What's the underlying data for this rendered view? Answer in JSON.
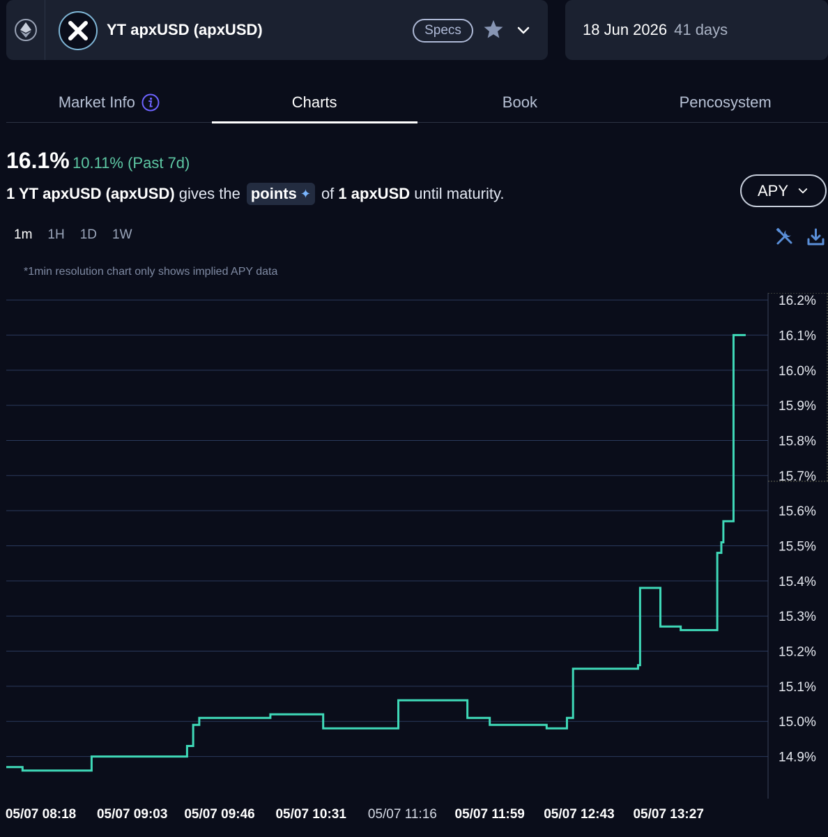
{
  "header": {
    "network_icon": "ethereum-icon",
    "token_logo_icon": "x-logo-icon",
    "token_name": "YT apxUSD (apxUSD)",
    "specs_label": "Specs",
    "favorite_icon": "star-icon",
    "dropdown_icon": "chevron-down-icon",
    "expiry_date": "18 Jun 2026",
    "expiry_days": "41 days"
  },
  "tabs": [
    {
      "label": "Market Info",
      "active": false
    },
    {
      "label": "Charts",
      "active": true
    },
    {
      "label": "Book",
      "active": false
    },
    {
      "label": "Pencosystem",
      "active": false
    }
  ],
  "summary": {
    "current_apy": "16.1%",
    "change_value": "10.11%",
    "change_period": "(Past 7d)",
    "desc_part1": "1 YT apxUSD (apxUSD)",
    "desc_part2": "gives the",
    "points_label": "points",
    "desc_part3": "of",
    "desc_part4": "1 apxUSD",
    "desc_part5": "until maturity."
  },
  "metric_select": {
    "label": "APY"
  },
  "resolutions": [
    {
      "label": "1m",
      "active": true
    },
    {
      "label": "1H",
      "active": false
    },
    {
      "label": "1D",
      "active": false
    },
    {
      "label": "1W",
      "active": false
    }
  ],
  "note": "*1min resolution chart only shows implied APY data",
  "colors": {
    "line": "#3fd9b8",
    "grid": "#2a3a5c",
    "positive": "#5ec8a4",
    "background": "#0a0d1a"
  },
  "chart_data": {
    "type": "line",
    "step": true,
    "x_ticks": [
      "05/07 08:18",
      "05/07 09:03",
      "05/07 09:46",
      "05/07 10:31",
      "05/07 11:16",
      "05/07 11:59",
      "05/07 12:43",
      "05/07 13:27"
    ],
    "x_tick_minutes": [
      498,
      543,
      586,
      631,
      676,
      719,
      763,
      807
    ],
    "x_range_minutes": [
      481,
      856
    ],
    "y_ticks": [
      "16.2%",
      "16.1%",
      "16.0%",
      "15.9%",
      "15.8%",
      "15.7%",
      "15.6%",
      "15.5%",
      "15.4%",
      "15.3%",
      "15.2%",
      "15.1%",
      "15.0%",
      "14.9%"
    ],
    "ylim": [
      14.78,
      16.22
    ],
    "series": [
      {
        "points": [
          [
            481,
            14.87
          ],
          [
            489,
            14.86
          ],
          [
            523,
            14.9
          ],
          [
            570,
            14.93
          ],
          [
            573,
            14.99
          ],
          [
            576,
            15.01
          ],
          [
            611,
            15.02
          ],
          [
            637,
            14.98
          ],
          [
            674,
            15.06
          ],
          [
            708,
            15.01
          ],
          [
            719,
            14.99
          ],
          [
            747,
            14.98
          ],
          [
            757,
            15.01
          ],
          [
            760,
            15.15
          ],
          [
            792,
            15.16
          ],
          [
            793,
            15.38
          ],
          [
            803,
            15.27
          ],
          [
            813,
            15.26
          ],
          [
            831,
            15.48
          ],
          [
            833,
            15.51
          ],
          [
            834,
            15.57
          ],
          [
            839,
            16.1
          ],
          [
            845,
            16.1
          ]
        ]
      }
    ]
  }
}
